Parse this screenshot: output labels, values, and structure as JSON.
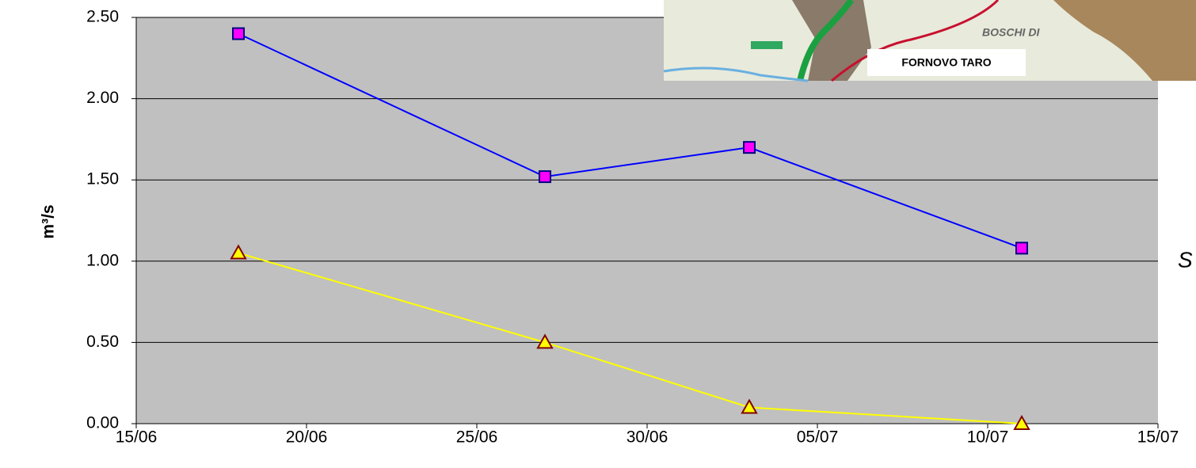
{
  "chart_data": {
    "type": "line",
    "ylabel": "m³/s",
    "x": [
      "18/06",
      "27/06",
      "03/07",
      "11/07"
    ],
    "series": [
      {
        "color": "#0000ff",
        "marker": "square",
        "marker_fill": "#ff00ff",
        "marker_edge": "#000080",
        "values": [
          2.4,
          1.52,
          1.7,
          1.08
        ]
      },
      {
        "color": "#ffff00",
        "marker": "triangle",
        "marker_fill": "#ffff00",
        "marker_edge": "#800000",
        "values": [
          1.05,
          0.5,
          0.1,
          0.0
        ]
      }
    ],
    "xlim": [
      "15/06",
      "15/07"
    ],
    "xticks": [
      "15/06",
      "20/06",
      "25/06",
      "30/06",
      "05/07",
      "10/07",
      "15/07"
    ],
    "ylim": [
      0,
      2.5
    ],
    "yticks": [
      {
        "value": 0,
        "label": "0.00"
      },
      {
        "value": 0.5,
        "label": "0.50"
      },
      {
        "value": 1,
        "label": "1.00"
      },
      {
        "value": 1.5,
        "label": "1.50"
      },
      {
        "value": 2,
        "label": "2.00"
      },
      {
        "value": 2.5,
        "label": "2.50"
      }
    ],
    "grid": true,
    "plot_background": "#c0c0c0"
  },
  "inset": {
    "place_label": "FORNOVO TARO",
    "area_label": "BOSCHI DI"
  },
  "side_text": "S"
}
